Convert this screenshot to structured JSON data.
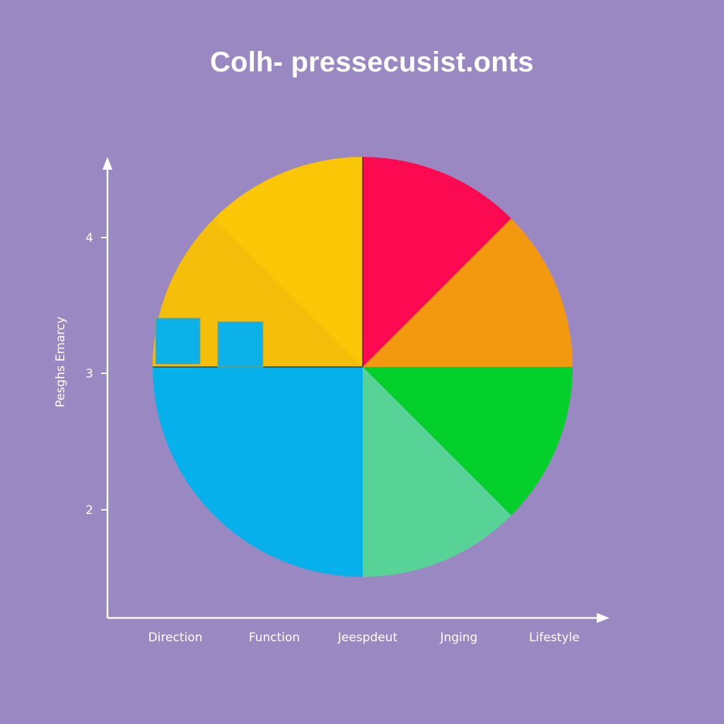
{
  "chart_data": {
    "type": "pie",
    "title": "Colh- pressecusist.onts",
    "ylabel": "Pesghs Emarcy",
    "xlabel": "",
    "y_ticks": [
      "4",
      "3",
      "2"
    ],
    "x_tick_labels": [
      "Direction",
      "Function",
      "Jeespdeut",
      "Jnging",
      "Lifestyle"
    ],
    "slices": [
      {
        "value": 12.5,
        "color": "#fb0a52"
      },
      {
        "value": 12.5,
        "color": "#f3990f"
      },
      {
        "value": 12.5,
        "color": "#03d02a"
      },
      {
        "value": 12.5,
        "color": "#58d398"
      },
      {
        "value": 25.0,
        "color": "#06b0ea"
      },
      {
        "value": 25.0,
        "color": "#fac605"
      }
    ],
    "legend_squares": [
      {
        "color": "#0bb1e8"
      },
      {
        "color": "#0bb1e8"
      }
    ],
    "colors": {
      "background": "#9a88c2",
      "axis": "#ffffff",
      "text": "#ffffff"
    }
  }
}
